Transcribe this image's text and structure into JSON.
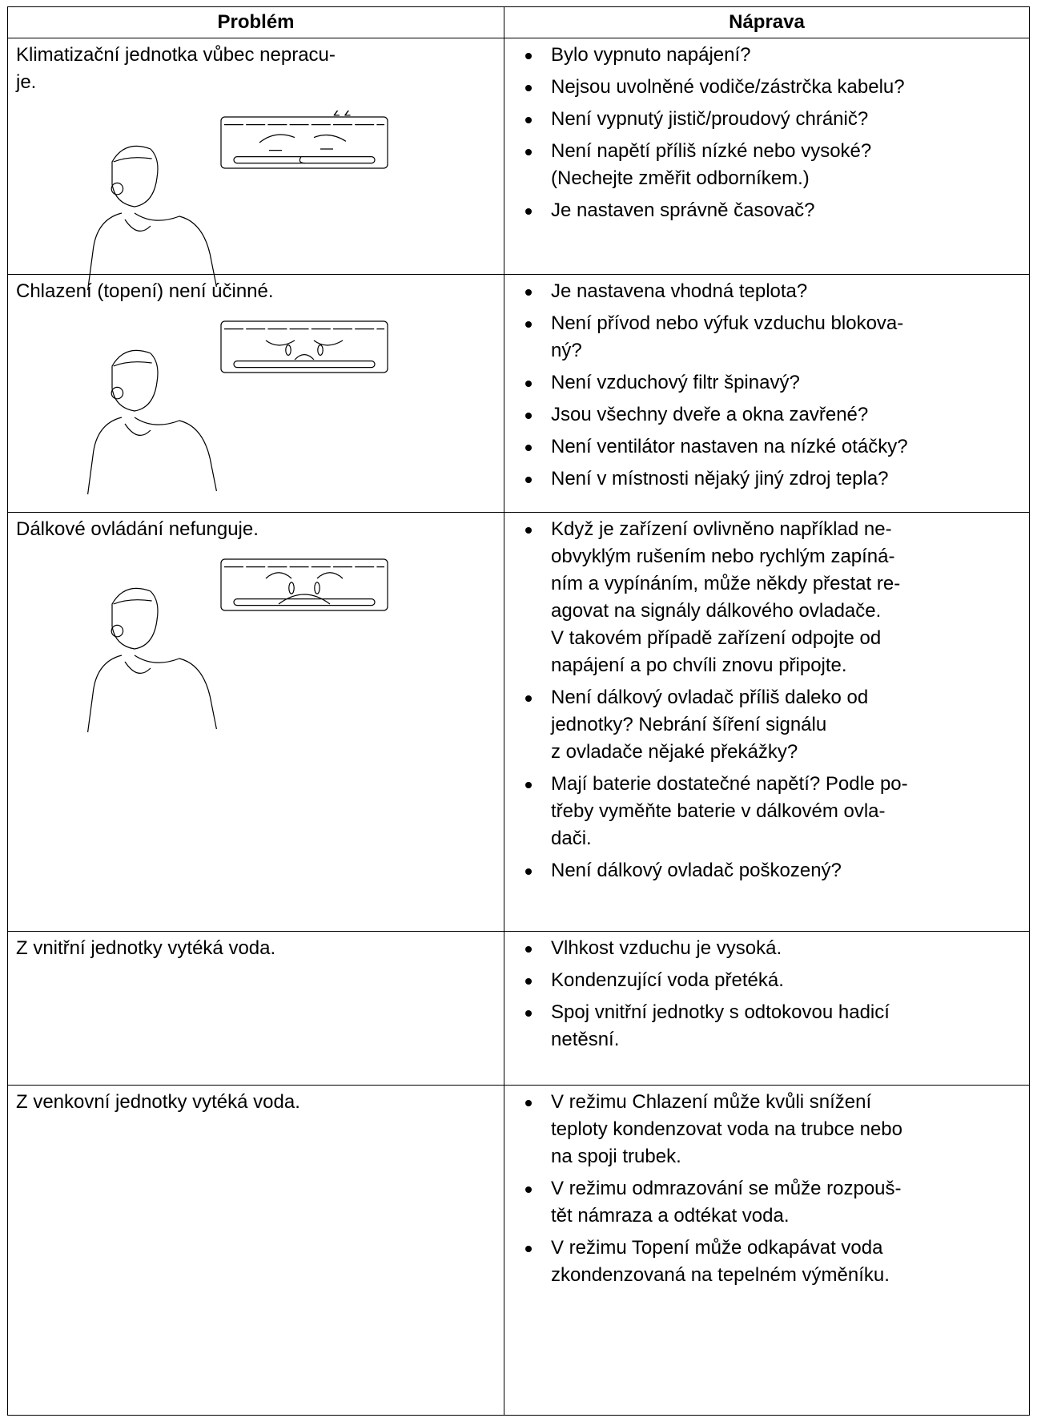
{
  "table": {
    "headers": [
      "Problém",
      "Náprava"
    ],
    "rows": [
      {
        "problem": [
          "Klimatizační jednotka vůbec nepracu-",
          "je."
        ],
        "remedies": [
          [
            "Bylo vypnuto napájení?"
          ],
          [
            "Nejsou uvolněné vodiče/zástrčka kabelu?"
          ],
          [
            "Není vypnutý jistič/proudový chránič?"
          ],
          [
            "Není napětí příliš nízké nebo vysoké?",
            "(Nechejte změřit odborníkem.)"
          ],
          [
            "Je nastaven správně časovač?"
          ]
        ]
      },
      {
        "problem": [
          "Chlazení (topení) není účinné."
        ],
        "remedies": [
          [
            "Je nastavena vhodná teplota?"
          ],
          [
            "Není přívod nebo výfuk vzduchu blokova-",
            "ný?"
          ],
          [
            "Není vzduchový filtr špinavý?"
          ],
          [
            "Jsou všechny dveře a okna zavřené?"
          ],
          [
            "Není ventilátor nastaven na nízké otáčky?"
          ],
          [
            "Není v místnosti nějaký jiný zdroj tepla?"
          ]
        ]
      },
      {
        "problem": [
          "Dálkové ovládání nefunguje."
        ],
        "remedies": [
          [
            "Když je zařízení ovlivněno například ne-",
            "obvyklým rušením nebo rychlým zapíná-",
            "ním a vypínáním, může někdy přestat re-",
            "agovat na signály dálkového ovladače.",
            "V takovém případě zařízení odpojte od",
            "napájení a po chvíli znovu připojte."
          ],
          [
            "Není dálkový ovladač příliš daleko od",
            "jednotky? Nebrání šíření signálu",
            "z ovladače nějaké překážky?"
          ],
          [
            "Mají baterie dostatečné napětí? Podle po-",
            "třeby vyměňte baterie v dálkovém ovla-",
            "dači."
          ],
          [
            "Není dálkový ovladač poškozený?"
          ]
        ]
      },
      {
        "problem": [
          "Z vnitřní jednotky vytéká voda."
        ],
        "remedies": [
          [
            "Vlhkost vzduchu je vysoká."
          ],
          [
            "Kondenzující voda přetéká."
          ],
          [
            "Spoj vnitřní jednotky s odtokovou hadicí",
            "netěsní."
          ]
        ]
      },
      {
        "problem": [
          "Z venkovní jednotky vytéká voda."
        ],
        "remedies": [
          [
            "V režimu Chlazení může kvůli snížení",
            "teploty kondenzovat voda na trubce nebo",
            "na spoji trubek."
          ],
          [
            "V režimu odmrazování se může rozpouš-",
            "tět námraza a odtékat voda."
          ],
          [
            "V režimu Topení může odkapávat voda",
            "zkondenzovaná na tepelném výměníku."
          ]
        ]
      }
    ]
  }
}
